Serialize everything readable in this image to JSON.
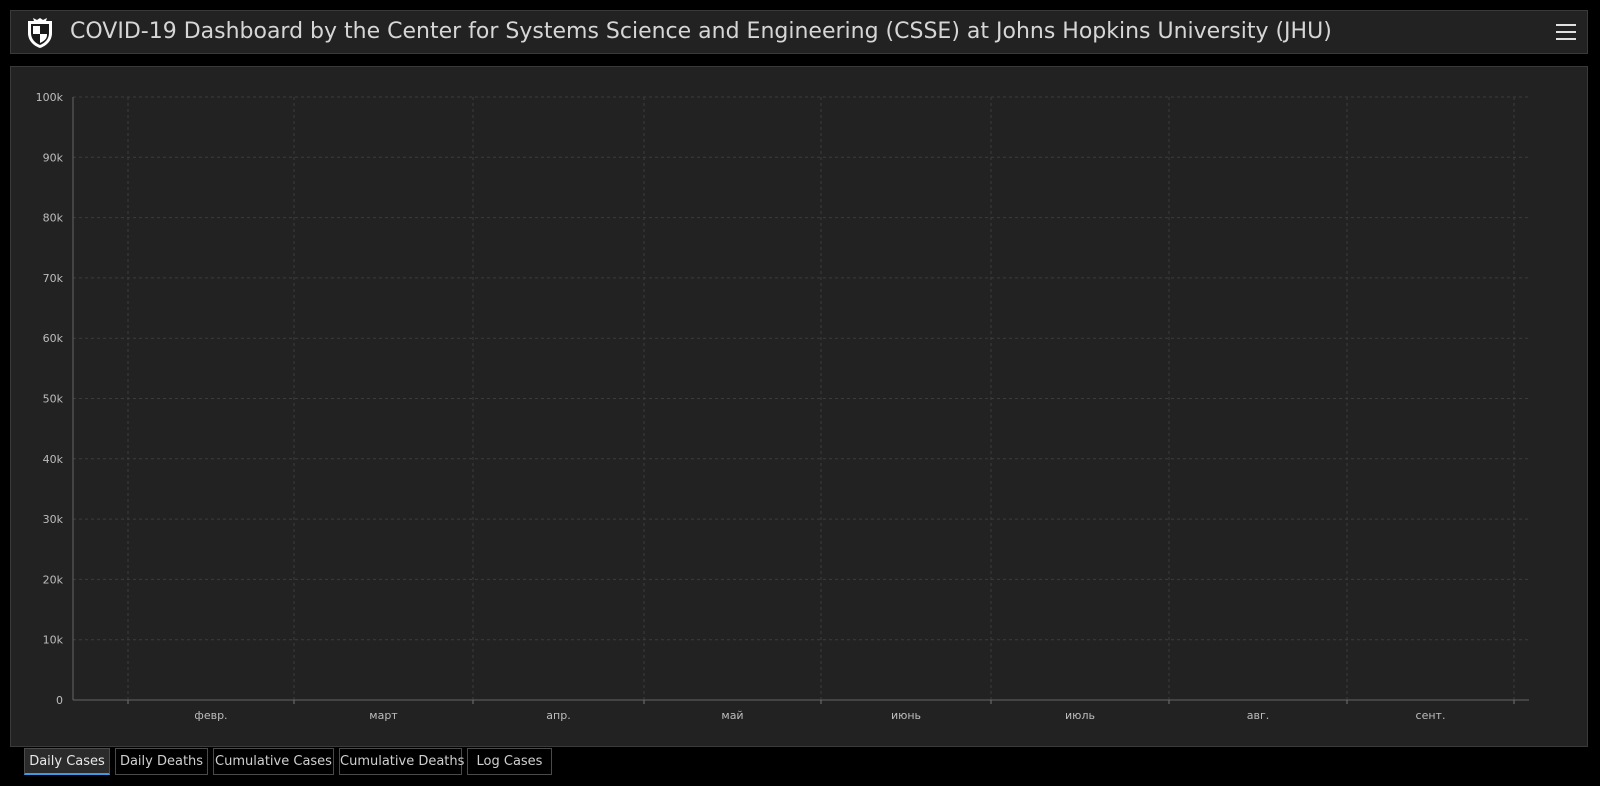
{
  "header": {
    "title": "COVID-19 Dashboard by the Center for Systems Science and Engineering (CSSE) at Johns Hopkins University (JHU)"
  },
  "tabs": [
    {
      "label": "Daily Cases",
      "active": true
    },
    {
      "label": "Daily Deaths",
      "active": false
    },
    {
      "label": "Cumulative Cases",
      "active": false
    },
    {
      "label": "Cumulative Deaths",
      "active": false
    },
    {
      "label": "Log Cases",
      "active": false
    }
  ],
  "colors": {
    "bar": "#ffa800",
    "background": "#222222",
    "grid": "#3c3c3c",
    "tick_text": "#bdbdbd",
    "active_tab": "#3d9be6"
  },
  "chart_data": {
    "type": "bar",
    "ylim": [
      0,
      100000
    ],
    "yticks": [
      0,
      10000,
      20000,
      30000,
      40000,
      50000,
      60000,
      70000,
      80000,
      90000,
      100000
    ],
    "ytick_labels": [
      "0",
      "10k",
      "20k",
      "30k",
      "40k",
      "50k",
      "60k",
      "70k",
      "80k",
      "90k",
      "100k"
    ],
    "month_labels": [
      "февр.",
      "март",
      "апр.",
      "май",
      "июнь",
      "июль",
      "авг.",
      "сент."
    ],
    "grid": true,
    "x_start_offset_days": 9,
    "values": [
      0,
      0,
      0,
      0,
      0,
      0,
      0,
      0,
      0,
      0,
      0,
      0,
      0,
      0,
      0,
      0,
      0,
      0,
      0,
      0,
      0,
      0,
      0,
      0,
      0,
      0,
      0,
      0,
      0,
      0,
      0,
      0,
      0,
      0,
      0,
      0,
      0,
      0,
      0,
      0,
      0,
      0,
      0,
      0,
      0,
      0,
      0,
      0,
      0,
      0,
      0,
      0,
      0,
      0,
      0,
      0,
      0,
      0,
      0,
      0,
      0,
      0,
      0,
      0,
      0,
      0,
      0,
      0,
      0,
      0,
      0,
      0,
      0,
      0,
      0,
      0,
      0,
      0,
      0,
      0,
      0,
      0,
      0,
      0,
      0,
      0,
      0,
      0,
      0,
      0,
      0,
      0,
      0,
      0,
      0,
      0,
      0,
      0,
      0,
      0,
      0,
      0,
      0,
      0,
      0,
      0,
      0,
      0,
      0,
      0,
      0,
      0,
      0,
      0,
      0,
      0,
      0,
      0,
      0,
      0,
      0,
      0,
      0,
      0,
      0,
      0,
      0,
      0,
      0,
      0,
      0,
      0,
      0,
      0,
      0,
      0,
      0,
      0,
      0,
      0,
      0,
      0,
      0,
      0,
      0,
      0,
      0,
      0,
      0,
      0,
      0,
      0,
      0,
      0,
      0,
      0,
      0,
      0,
      0,
      0,
      0,
      0,
      0,
      0,
      0,
      0,
      0,
      0,
      0,
      0,
      0,
      0,
      0,
      0,
      0,
      0,
      0,
      0,
      0,
      0,
      0,
      0,
      0,
      0,
      0,
      0,
      0,
      0,
      0,
      0,
      0,
      0,
      0,
      0,
      0,
      0,
      0,
      0,
      0,
      0,
      0,
      0,
      0,
      0,
      0,
      0,
      0,
      0,
      0,
      0,
      0,
      0,
      0,
      0,
      0,
      0,
      0,
      0,
      0,
      0,
      0,
      0,
      0,
      0,
      0,
      0,
      0,
      0,
      0,
      0,
      0,
      0,
      0,
      0,
      0,
      0,
      0,
      0,
      0,
      0,
      0,
      0
    ]
  }
}
